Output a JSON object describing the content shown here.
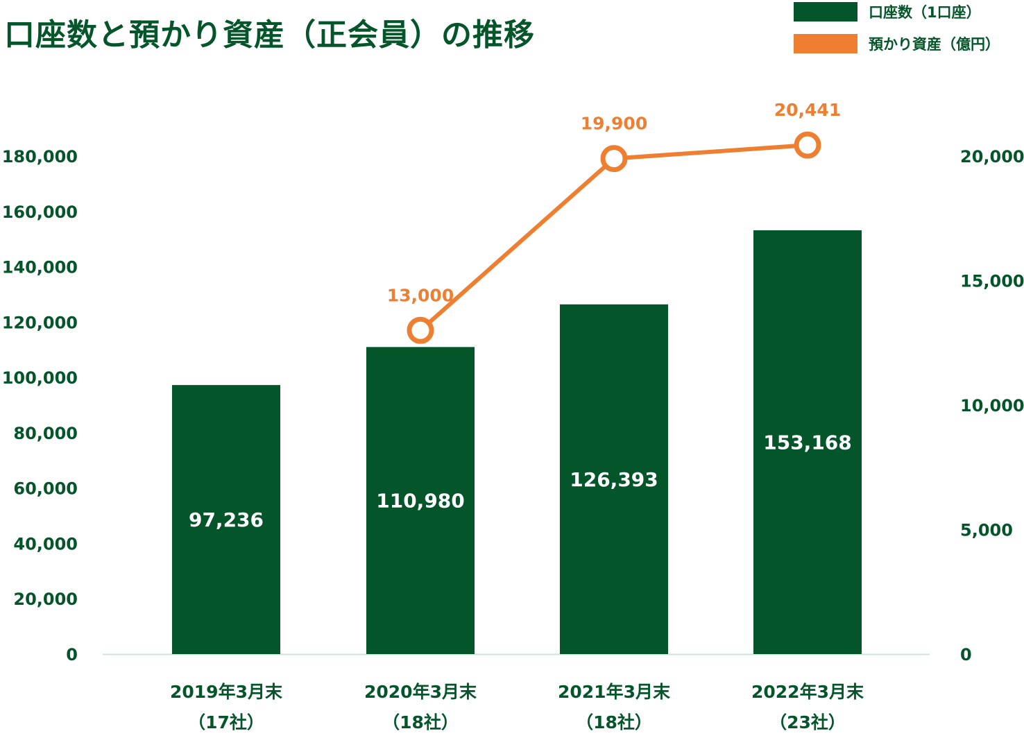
{
  "colors": {
    "bar": "#04552a",
    "line": "#ee7f31",
    "text": "#04552a",
    "axis": "#cfe3da"
  },
  "chart_data": {
    "type": "bar",
    "title": "口座数と預かり資産（正会員）の推移",
    "categories": [
      [
        "2019年3月末",
        "（17社）"
      ],
      [
        "2020年3月末",
        "（18社）"
      ],
      [
        "2021年3月末",
        "（18社）"
      ],
      [
        "2022年3月末",
        "（23社）"
      ]
    ],
    "series": [
      {
        "name": "口座数（1口座）",
        "type": "bar",
        "axis": "left",
        "values": [
          97236,
          110980,
          126393,
          153168
        ],
        "labels": [
          "97,236",
          "110,980",
          "126,393",
          "153,168"
        ]
      },
      {
        "name": "預かり資産（億円）",
        "type": "line",
        "axis": "right",
        "values": [
          null,
          13000,
          19900,
          20441
        ],
        "labels": [
          "",
          "13,000",
          "19,900",
          "20,441"
        ]
      }
    ],
    "left_axis": {
      "ylim": [
        0,
        180000
      ],
      "ticks": [
        0,
        20000,
        40000,
        60000,
        80000,
        100000,
        120000,
        140000,
        160000,
        180000
      ],
      "tick_labels": [
        "0",
        "20,000",
        "40,000",
        "60,000",
        "80,000",
        "100,000",
        "120,000",
        "140,000",
        "160,000",
        "180,000"
      ]
    },
    "right_axis": {
      "ylim": [
        0,
        20000
      ],
      "ticks": [
        0,
        5000,
        10000,
        15000,
        20000
      ],
      "tick_labels": [
        "0",
        "5,000",
        "10,000",
        "15,000",
        "20,000"
      ]
    },
    "legend": "top-right"
  }
}
